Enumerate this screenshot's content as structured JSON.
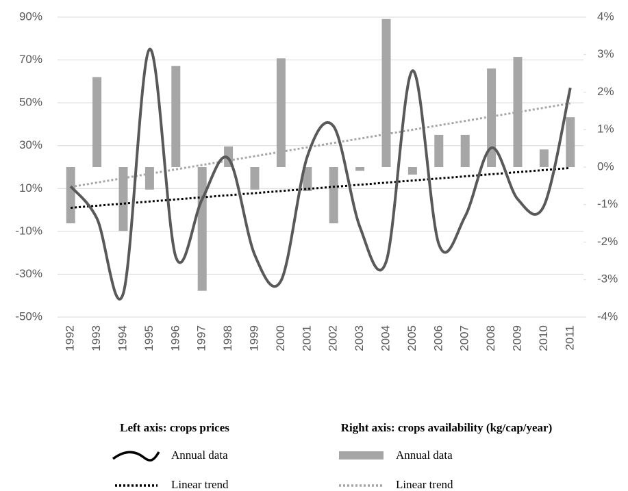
{
  "chart_data": {
    "type": "combo",
    "categories": [
      "1992",
      "1993",
      "1994",
      "1995",
      "1996",
      "1997",
      "1998",
      "1999",
      "2000",
      "2001",
      "2002",
      "2003",
      "2004",
      "2005",
      "2006",
      "2007",
      "2008",
      "2009",
      "2010",
      "2011"
    ],
    "series": [
      {
        "name": "Annual data",
        "type": "line",
        "color": "#595959",
        "values": [
          11,
          -4,
          -39,
          75,
          -22,
          5,
          24,
          -21,
          -33,
          25,
          39,
          -8,
          -24,
          65,
          -16,
          -3,
          29,
          5,
          2,
          57
        ]
      },
      {
        "name": "Linear trend",
        "type": "trend",
        "color": "#000000",
        "x": [
          "1992",
          "2011"
        ],
        "values": [
          1,
          19.6
        ]
      },
      {
        "name": "Annual data",
        "type": "bar",
        "axis": "y2",
        "color": "#a6a6a6",
        "values": [
          -1.5,
          2.4,
          -1.7,
          -0.6,
          2.7,
          -3.3,
          0.55,
          -0.6,
          2.9,
          -0.64,
          -1.5,
          -0.1,
          3.95,
          -0.2,
          0.86,
          0.86,
          2.63,
          2.94,
          0.47,
          1.33
        ]
      },
      {
        "name": "Linear trend",
        "type": "trend",
        "axis": "y2",
        "color": "#a6a6a6",
        "x": [
          "1992",
          "2011"
        ],
        "values": [
          -0.53,
          1.7
        ]
      }
    ],
    "legend_titles": [
      "Left axis: crops prices",
      "Right axis: crops availability (kg/cap/year)"
    ],
    "ylim": [
      -50,
      90
    ],
    "yticks": [
      {
        "value": -50,
        "label": "-50%"
      },
      {
        "value": -30,
        "label": "-30%"
      },
      {
        "value": -10,
        "label": "-10%"
      },
      {
        "value": 10,
        "label": "10%"
      },
      {
        "value": 30,
        "label": "30%"
      },
      {
        "value": 50,
        "label": "50%"
      },
      {
        "value": 70,
        "label": "70%"
      },
      {
        "value": 90,
        "label": "90%"
      }
    ],
    "y2lim": [
      -4,
      4
    ],
    "y2ticks": [
      {
        "value": -4,
        "label": "-4%"
      },
      {
        "value": -3,
        "label": "-3%"
      },
      {
        "value": -2,
        "label": "-2%"
      },
      {
        "value": -1,
        "label": "-1%"
      },
      {
        "value": 0,
        "label": "0%"
      },
      {
        "value": 1,
        "label": "1%"
      },
      {
        "value": 2,
        "label": "2%"
      },
      {
        "value": 3,
        "label": "3%"
      },
      {
        "value": 4,
        "label": "4%"
      }
    ],
    "grid": true
  }
}
